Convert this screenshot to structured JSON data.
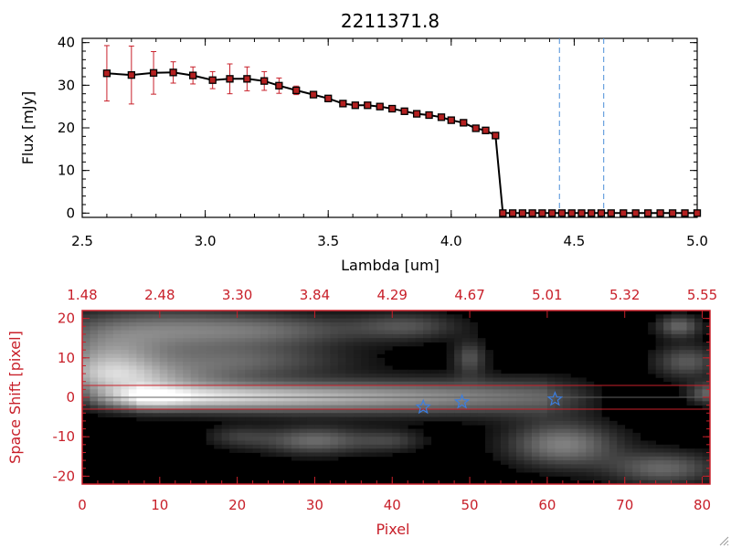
{
  "colors": {
    "background": "#ffffff",
    "axis": "#000000",
    "accent_red": "#c8202a",
    "marker_fill": "#b32020",
    "dashed_line": "#4a8ed8",
    "star": "#3c7ee0",
    "line": "#000000"
  },
  "chart_data": [
    {
      "type": "line",
      "title": "2211371.8",
      "xlabel": "Lambda [um]",
      "ylabel": "Flux [mJy]",
      "xlim": [
        2.5,
        5.0
      ],
      "ylim": [
        -1,
        41
      ],
      "x_ticks": [
        "2.5",
        "3.0",
        "3.5",
        "4.0",
        "4.5",
        "5.0"
      ],
      "x_tick_values": [
        2.5,
        3.0,
        3.5,
        4.0,
        4.5,
        5.0
      ],
      "y_ticks": [
        "0",
        "10",
        "20",
        "30",
        "40"
      ],
      "y_tick_values": [
        0,
        10,
        20,
        30,
        40
      ],
      "series": [
        {
          "x": [
            2.6,
            2.7,
            2.79,
            2.87,
            2.95,
            3.03,
            3.1,
            3.17,
            3.24,
            3.3,
            3.37,
            3.44,
            3.5,
            3.56,
            3.61,
            3.66,
            3.71,
            3.76,
            3.81,
            3.86,
            3.91,
            3.96,
            4.0,
            4.05,
            4.1,
            4.14,
            4.18,
            4.21,
            4.25,
            4.29,
            4.33,
            4.37,
            4.41,
            4.45,
            4.49,
            4.53,
            4.57,
            4.61,
            4.65,
            4.7,
            4.75,
            4.8,
            4.85,
            4.9,
            4.95,
            5.0
          ],
          "y": [
            32.8,
            32.4,
            32.9,
            33.0,
            32.3,
            31.2,
            31.5,
            31.5,
            31.0,
            29.9,
            28.8,
            27.8,
            26.9,
            25.7,
            25.3,
            25.3,
            25.0,
            24.5,
            23.9,
            23.3,
            23.0,
            22.5,
            21.8,
            21.2,
            19.9,
            19.4,
            18.2,
            0,
            0,
            0,
            0,
            0,
            0,
            0,
            0,
            0,
            0,
            0,
            0,
            0,
            0,
            0,
            0,
            0,
            0,
            0
          ],
          "err": [
            6.5,
            6.8,
            5.0,
            2.5,
            2.0,
            2.0,
            3.5,
            2.8,
            2.2,
            1.8,
            1.0,
            0.6,
            0.5,
            0.5,
            0.4,
            0.4,
            0.4,
            0.4,
            0.4,
            0.4,
            0.4,
            0.4,
            0.4,
            0.4,
            0.4,
            0.4,
            0.5,
            0,
            0,
            0,
            0,
            0,
            0,
            0,
            0,
            0,
            0,
            0,
            0,
            0,
            0,
            0,
            0,
            0,
            0,
            0
          ]
        }
      ],
      "vlines_dashed": [
        4.44,
        4.62
      ]
    },
    {
      "type": "heatmap",
      "xlabel": "Pixel",
      "ylabel": "Space Shift [pixel]",
      "xlim": [
        0,
        81
      ],
      "ylim": [
        -22,
        22
      ],
      "x_ticks": [
        "0",
        "10",
        "20",
        "30",
        "40",
        "50",
        "60",
        "70",
        "80"
      ],
      "x_tick_values": [
        0,
        10,
        20,
        30,
        40,
        50,
        60,
        70,
        80
      ],
      "y_ticks": [
        "-20",
        "-10",
        "0",
        "10",
        "20"
      ],
      "y_tick_values": [
        -20,
        -10,
        0,
        10,
        20
      ],
      "top_ticks": [
        "1.48",
        "2.48",
        "3.30",
        "3.84",
        "4.29",
        "4.67",
        "5.01",
        "5.32",
        "5.55"
      ],
      "top_tick_positions": [
        0,
        10,
        20,
        30,
        40,
        50,
        60,
        70,
        80
      ],
      "aperture_lines": [
        3,
        -3
      ],
      "trace_center": 0,
      "stars": [
        {
          "x": 44,
          "y": -2.5
        },
        {
          "x": 49,
          "y": -1.2
        },
        {
          "x": 61,
          "y": -0.5
        }
      ],
      "blobs": [
        {
          "x": 3,
          "y": 8,
          "sx": 5,
          "sy": 5,
          "v": 0.55
        },
        {
          "x": 10,
          "y": 17,
          "sx": 10,
          "sy": 4,
          "v": 0.45
        },
        {
          "x": 26,
          "y": 17,
          "sx": 8,
          "sy": 3,
          "v": 0.28
        },
        {
          "x": 42,
          "y": 18,
          "sx": 5,
          "sy": 2.5,
          "v": 0.3
        },
        {
          "x": 20,
          "y": 9,
          "sx": 10,
          "sy": 3,
          "v": 0.35
        },
        {
          "x": 8,
          "y": 5,
          "sx": 8,
          "sy": 2.5,
          "v": 0.35
        },
        {
          "x": 50,
          "y": 10,
          "sx": 1.5,
          "sy": 3,
          "v": 0.32
        },
        {
          "x": 77,
          "y": 18,
          "sx": 2,
          "sy": 2,
          "v": 0.4
        },
        {
          "x": 78,
          "y": 9,
          "sx": 3,
          "sy": 3,
          "v": 0.35
        },
        {
          "x": 30,
          "y": -11,
          "sx": 5,
          "sy": 2.5,
          "v": 0.42
        },
        {
          "x": 20,
          "y": -10,
          "sx": 3,
          "sy": 2,
          "v": 0.2
        },
        {
          "x": 62,
          "y": -12,
          "sx": 5,
          "sy": 4,
          "v": 0.5
        },
        {
          "x": 75,
          "y": -18,
          "sx": 5,
          "sy": 3,
          "v": 0.4
        },
        {
          "x": 40,
          "y": -11,
          "sx": 3,
          "sy": 2,
          "v": 0.22
        },
        {
          "x": 81,
          "y": 1,
          "sx": 2,
          "sy": 2,
          "v": 0.4
        }
      ]
    }
  ]
}
